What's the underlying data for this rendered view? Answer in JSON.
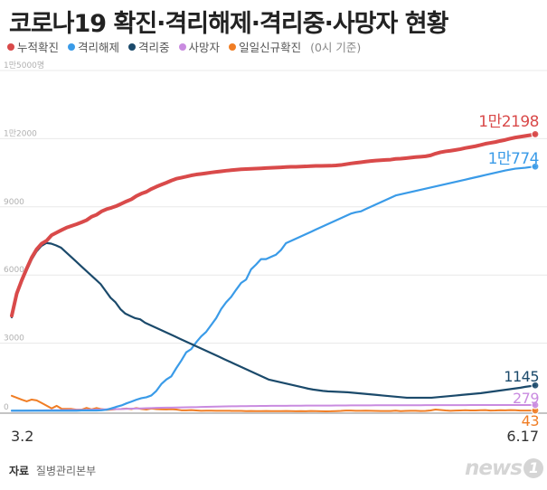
{
  "title": "코로나19 확진·격리해제·격리중·사망자 현황",
  "legend_note": "(0시 기준)",
  "source_label": "자료",
  "source_text": "질병관리본부",
  "logo_text": "news",
  "logo_mark": "1",
  "chart_data": {
    "type": "line",
    "ylim": [
      0,
      15000
    ],
    "yticks": [
      {
        "value": 15000,
        "label": "1만5000명"
      },
      {
        "value": 12000,
        "label": "1만2000"
      },
      {
        "value": 9000,
        "label": "9000"
      },
      {
        "value": 6000,
        "label": "6000"
      },
      {
        "value": 3000,
        "label": "3000"
      },
      {
        "value": 0,
        "label": "0"
      }
    ],
    "x_start_label": "3.2",
    "x_end_label": "6.17",
    "grid": true,
    "legend_position": "top-left",
    "series": [
      {
        "name": "누적확진",
        "color": "#d94a4a",
        "end_label": "1만2198",
        "values": [
          4212,
          5186,
          5766,
          6284,
          6767,
          7134,
          7382,
          7513,
          7755,
          7869,
          7979,
          8086,
          8162,
          8236,
          8320,
          8413,
          8565,
          8652,
          8799,
          8897,
          8961,
          9037,
          9137,
          9241,
          9332,
          9478,
          9583,
          9661,
          9786,
          9887,
          9976,
          10062,
          10156,
          10237,
          10284,
          10331,
          10384,
          10423,
          10450,
          10480,
          10512,
          10537,
          10564,
          10591,
          10613,
          10635,
          10653,
          10661,
          10674,
          10683,
          10694,
          10708,
          10718,
          10728,
          10738,
          10752,
          10761,
          10765,
          10774,
          10780,
          10793,
          10801,
          10804,
          10806,
          10810,
          10822,
          10840,
          10874,
          10909,
          10936,
          10962,
          10991,
          11018,
          11037,
          11050,
          11065,
          11078,
          11110,
          11122,
          11142,
          11165,
          11190,
          11206,
          11225,
          11265,
          11344,
          11402,
          11441,
          11468,
          11503,
          11541,
          11590,
          11629,
          11668,
          11719,
          11776,
          11814,
          11852,
          11902,
          11947,
          12003,
          12051,
          12085,
          12121,
          12155,
          12198
        ]
      },
      {
        "name": "격리해제",
        "color": "#3a9be8",
        "end_label": "1만774",
        "values": [
          30,
          31,
          31,
          31,
          31,
          31,
          31,
          31,
          31,
          31,
          31,
          31,
          31,
          31,
          41,
          41,
          41,
          41,
          47,
          72,
          130,
          200,
          260,
          351,
          428,
          512,
          580,
          620,
          700,
          900,
          1200,
          1400,
          1540,
          1900,
          2230,
          2600,
          2740,
          3040,
          3300,
          3500,
          3800,
          4100,
          4500,
          4800,
          5035,
          5350,
          5650,
          5800,
          6250,
          6460,
          6698,
          6700,
          6800,
          6895,
          7100,
          7400,
          7500,
          7600,
          7700,
          7800,
          7900,
          8000,
          8100,
          8200,
          8300,
          8400,
          8500,
          8600,
          8700,
          8762,
          8800,
          8900,
          9000,
          9100,
          9200,
          9300,
          9400,
          9500,
          9550,
          9600,
          9650,
          9700,
          9750,
          9800,
          9850,
          9900,
          9950,
          10000,
          10050,
          10100,
          10150,
          10200,
          10250,
          10300,
          10350,
          10400,
          10450,
          10500,
          10550,
          10600,
          10640,
          10680,
          10700,
          10720,
          10750,
          10774
        ]
      },
      {
        "name": "격리중",
        "color": "#1b4a6b",
        "end_label": "1145",
        "values": [
          4140,
          5110,
          5690,
          6190,
          6670,
          7030,
          7280,
          7410,
          7380,
          7300,
          7200,
          7000,
          6800,
          6600,
          6400,
          6200,
          6000,
          5800,
          5600,
          5300,
          5000,
          4800,
          4500,
          4300,
          4200,
          4100,
          4050,
          3900,
          3800,
          3700,
          3600,
          3500,
          3400,
          3300,
          3200,
          3100,
          3000,
          2900,
          2800,
          2700,
          2600,
          2500,
          2400,
          2300,
          2200,
          2100,
          2000,
          1900,
          1800,
          1700,
          1600,
          1500,
          1400,
          1350,
          1300,
          1250,
          1200,
          1150,
          1100,
          1050,
          1000,
          960,
          930,
          900,
          880,
          870,
          860,
          850,
          840,
          820,
          800,
          780,
          760,
          740,
          720,
          700,
          680,
          660,
          640,
          620,
          600,
          600,
          600,
          600,
          600,
          600,
          620,
          640,
          660,
          680,
          700,
          720,
          740,
          760,
          780,
          800,
          830,
          860,
          890,
          920,
          950,
          980,
          1010,
          1040,
          1080,
          1110,
          1145
        ]
      },
      {
        "name": "사망자",
        "color": "#c98be0",
        "end_label": "279",
        "values": [
          22,
          24,
          24,
          32,
          35,
          40,
          42,
          44,
          50,
          51,
          54,
          60,
          63,
          66,
          67,
          72,
          75,
          81,
          84,
          91,
          94,
          102,
          104,
          111,
          120,
          126,
          131,
          139,
          144,
          152,
          158,
          162,
          165,
          169,
          174,
          177,
          183,
          186,
          192,
          200,
          204,
          208,
          214,
          217,
          222,
          225,
          229,
          230,
          234,
          236,
          237,
          240,
          242,
          243,
          244,
          246,
          247,
          248,
          250,
          252,
          255,
          256,
          256,
          256,
          256,
          258,
          259,
          260,
          262,
          263,
          263,
          264,
          264,
          266,
          266,
          267,
          269,
          269,
          269,
          270,
          270,
          271,
          271,
          272,
          272,
          273,
          273,
          273,
          274,
          274,
          275,
          275,
          276,
          276,
          276,
          277,
          277,
          277,
          277,
          278,
          278,
          278,
          278,
          279,
          279,
          279
        ]
      },
      {
        "name": "일일신규확진",
        "color": "#f07d24",
        "end_label": "43",
        "values": [
          686,
          600,
          516,
          438,
          518,
          483,
          367,
          248,
          131,
          242,
          114,
          110,
          107,
          76,
          74,
          152,
          87,
          147,
          98,
          64,
          76,
          100,
          104,
          125,
          101,
          146,
          105,
          78,
          125,
          101,
          89,
          86,
          94,
          81,
          47,
          47,
          53,
          39,
          27,
          30,
          32,
          25,
          27,
          27,
          22,
          22,
          18,
          8,
          13,
          9,
          11,
          14,
          10,
          10,
          10,
          14,
          9,
          4,
          9,
          6,
          13,
          8,
          3,
          2,
          4,
          12,
          18,
          34,
          35,
          27,
          26,
          29,
          27,
          19,
          13,
          15,
          13,
          32,
          12,
          20,
          23,
          25,
          16,
          19,
          40,
          79,
          58,
          39,
          27,
          35,
          38,
          49,
          39,
          39,
          51,
          57,
          37,
          38,
          50,
          45,
          56,
          48,
          34,
          36,
          34,
          43
        ]
      }
    ]
  }
}
